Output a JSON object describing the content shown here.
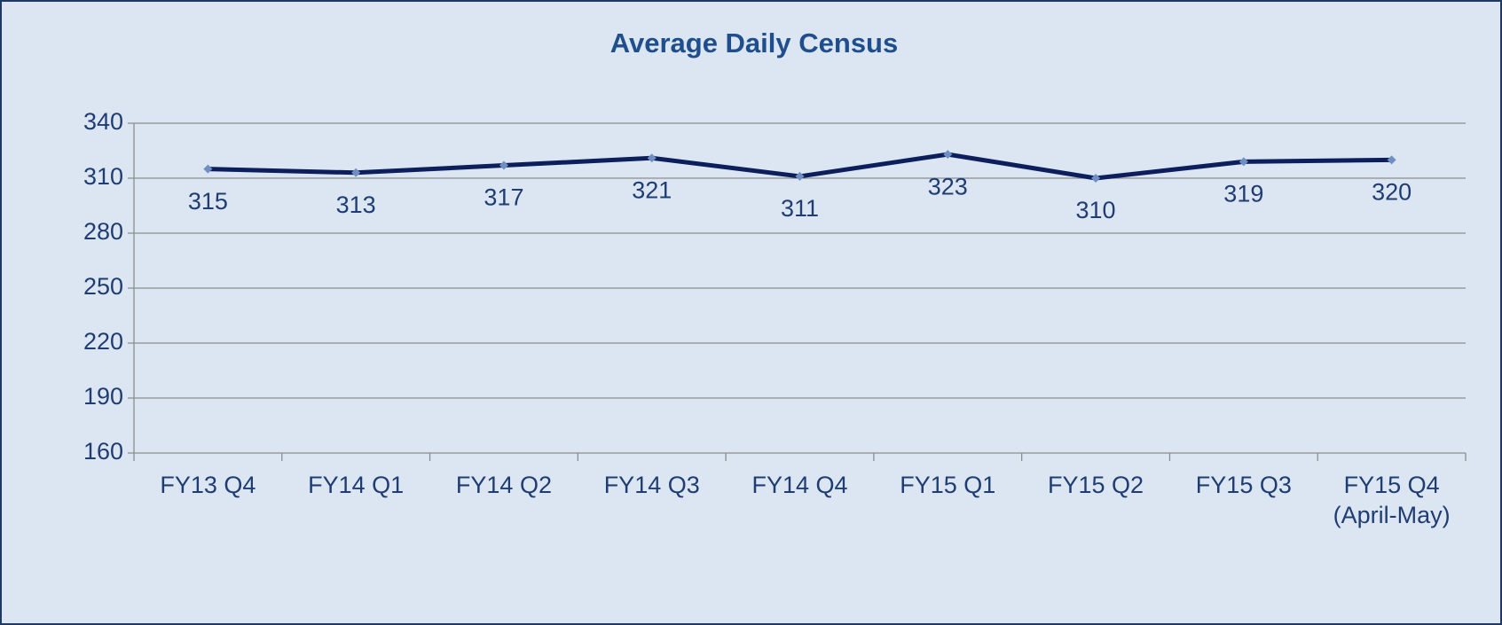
{
  "chart_data": {
    "type": "line",
    "title": "Average Daily Census",
    "categories": [
      "FY13 Q4",
      "FY14 Q1",
      "FY14 Q2",
      "FY14 Q3",
      "FY14 Q4",
      "FY15 Q1",
      "FY15 Q2",
      "FY15 Q3",
      "FY15 Q4\n(April-May)"
    ],
    "series": [
      {
        "name": "Average Daily Census",
        "color": "#0c1f5c",
        "values": [
          315,
          313,
          317,
          321,
          311,
          323,
          310,
          319,
          320
        ]
      }
    ],
    "ylim": [
      160,
      340
    ],
    "yticks": [
      160,
      190,
      220,
      250,
      280,
      310,
      340
    ],
    "grid": true
  }
}
